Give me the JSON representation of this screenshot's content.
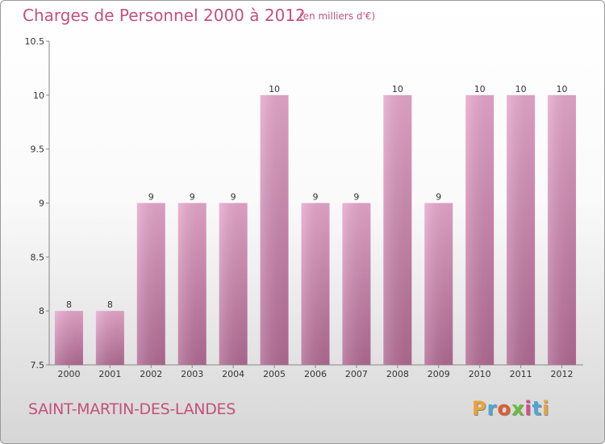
{
  "header": {
    "title": "Charges de Personnel 2000 à 2012",
    "subtitle": "(en milliers d'€)"
  },
  "footer": {
    "commune": "SAINT-MARTIN-DES-LANDES",
    "logo": "Proxiti",
    "logo_colors": [
      "#e8a33a",
      "#4aa8d8",
      "#e35a2b",
      "#6abf3a",
      "#d94a8c",
      "#4aa8d8",
      "#e8a33a"
    ]
  },
  "chart_data": {
    "type": "bar",
    "categories": [
      "2000",
      "2001",
      "2002",
      "2003",
      "2004",
      "2005",
      "2006",
      "2007",
      "2008",
      "2009",
      "2010",
      "2011",
      "2012"
    ],
    "values": [
      8,
      8,
      9,
      9,
      9,
      10,
      9,
      9,
      10,
      9,
      10,
      10,
      10
    ],
    "data_labels": [
      "8",
      "8",
      "9",
      "9",
      "9",
      "10",
      "9",
      "9",
      "10",
      "9",
      "10",
      "10",
      "10"
    ],
    "ylim": [
      7.5,
      10.5
    ],
    "yticks": [
      7.5,
      8,
      8.5,
      9,
      9.5,
      10,
      10.5
    ],
    "ytick_labels": [
      "7.5",
      "8",
      "8.5",
      "9",
      "9.5",
      "10",
      "10.5"
    ],
    "bar_color": "#d68db4",
    "grid": false
  }
}
